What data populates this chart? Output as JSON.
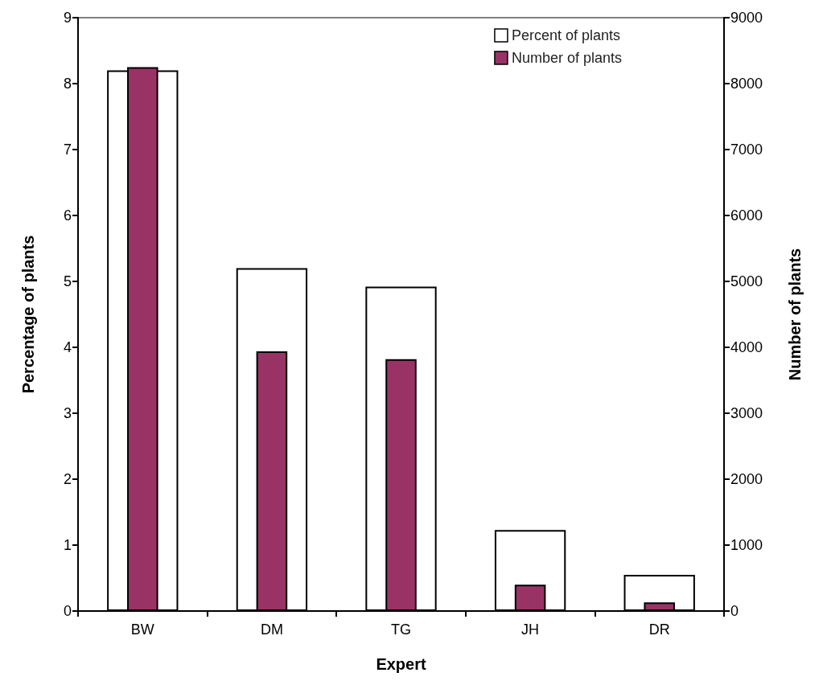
{
  "chart_data": {
    "type": "bar",
    "xlabel": "Expert",
    "ylabel": "Percentage of plants",
    "y2label": "Number of plants",
    "categories": [
      "BW",
      "DM",
      "TG",
      "JH",
      "DR"
    ],
    "series": [
      {
        "name": "Percent of plants",
        "color": "#ffffff",
        "values": [
          8.2,
          5.2,
          4.92,
          1.23,
          0.55
        ]
      },
      {
        "name": "Number of plants",
        "color": "#993366",
        "axis": "y2",
        "values": [
          8250,
          3940,
          3820,
          400,
          130
        ]
      }
    ],
    "ylim": [
      0,
      9
    ],
    "yticks": [
      0,
      1,
      2,
      3,
      4,
      5,
      6,
      7,
      8,
      9
    ],
    "y2lim": [
      0,
      9000
    ],
    "y2ticks": [
      0,
      1000,
      2000,
      3000,
      4000,
      5000,
      6000,
      7000,
      8000,
      9000
    ],
    "grid": false,
    "legend": "top right"
  }
}
